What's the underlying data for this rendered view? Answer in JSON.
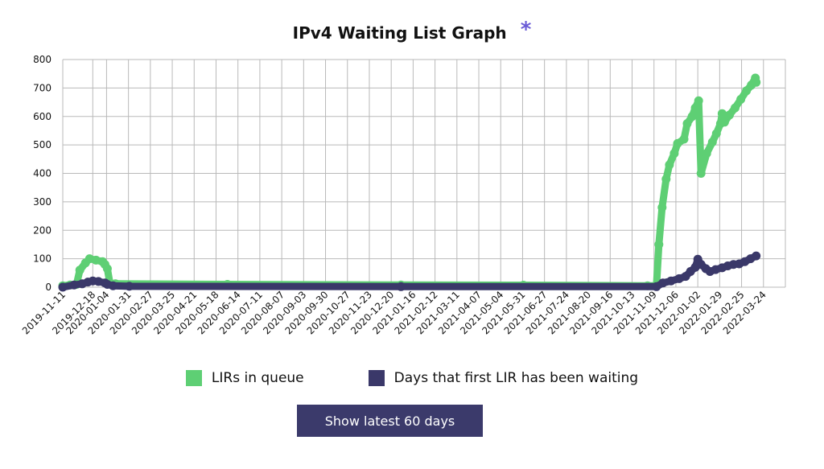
{
  "colors": {
    "lirs": "#5ecf74",
    "days": "#3a3869",
    "grid": "#b9b9b9",
    "accent": "#6a5bd6",
    "button": "#3b3a6b"
  },
  "chart_data": {
    "type": "line",
    "title": "IPv4 Waiting List Graph",
    "title_mark": "*",
    "xlabel": "",
    "ylabel": "",
    "ylim": [
      0,
      800
    ],
    "yticks": [
      "0",
      "100",
      "200",
      "300",
      "400",
      "500",
      "600",
      "700",
      "800"
    ],
    "xticks": [
      "2019-11-11",
      "2019-12-18",
      "2020-01-04",
      "2020-01-31",
      "2020-02-27",
      "2020-03-25",
      "2020-04-21",
      "2020-05-18",
      "2020-06-14",
      "2020-07-11",
      "2020-08-07",
      "2020-09-03",
      "2020-09-30",
      "2020-10-27",
      "2020-11-23",
      "2020-12-20",
      "2021-01-16",
      "2021-02-12",
      "2021-03-11",
      "2021-04-07",
      "2021-05-04",
      "2021-05-31",
      "2021-06-27",
      "2021-07-24",
      "2021-08-20",
      "2021-09-16",
      "2021-10-13",
      "2021-11-09",
      "2021-12-06",
      "2022-01-02",
      "2022-01-29",
      "2022-02-25",
      "2022-03-24"
    ],
    "grid": true,
    "legend_position": "bottom",
    "series": [
      {
        "name": "LIRs in queue",
        "points": [
          [
            "2019-11-11",
            5
          ],
          [
            "2019-11-20",
            8
          ],
          [
            "2019-11-28",
            10
          ],
          [
            "2019-12-02",
            60
          ],
          [
            "2019-12-09",
            85
          ],
          [
            "2019-12-14",
            100
          ],
          [
            "2019-12-22",
            95
          ],
          [
            "2019-12-30",
            90
          ],
          [
            "2020-01-02",
            80
          ],
          [
            "2020-01-05",
            65
          ],
          [
            "2020-01-08",
            15
          ],
          [
            "2020-01-15",
            12
          ],
          [
            "2020-06-01",
            10
          ],
          [
            "2021-01-01",
            8
          ],
          [
            "2021-06-01",
            7
          ],
          [
            "2021-11-01",
            5
          ],
          [
            "2021-11-12",
            5
          ],
          [
            "2021-11-15",
            150
          ],
          [
            "2021-11-19",
            280
          ],
          [
            "2021-11-24",
            380
          ],
          [
            "2021-11-28",
            430
          ],
          [
            "2021-12-04",
            470
          ],
          [
            "2021-12-08",
            505
          ],
          [
            "2021-12-16",
            520
          ],
          [
            "2021-12-20",
            575
          ],
          [
            "2021-12-26",
            600
          ],
          [
            "2021-12-30",
            630
          ],
          [
            "2022-01-03",
            655
          ],
          [
            "2022-01-06",
            400
          ],
          [
            "2022-01-13",
            470
          ],
          [
            "2022-01-20",
            510
          ],
          [
            "2022-01-25",
            540
          ],
          [
            "2022-01-30",
            575
          ],
          [
            "2022-02-01",
            610
          ],
          [
            "2022-02-04",
            580
          ],
          [
            "2022-02-10",
            605
          ],
          [
            "2022-02-17",
            630
          ],
          [
            "2022-02-24",
            660
          ],
          [
            "2022-03-03",
            690
          ],
          [
            "2022-03-09",
            710
          ],
          [
            "2022-03-14",
            735
          ],
          [
            "2022-03-15",
            720
          ]
        ]
      },
      {
        "name": "Days that first LIR has been waiting",
        "points": [
          [
            "2019-11-11",
            0
          ],
          [
            "2019-11-25",
            8
          ],
          [
            "2019-12-05",
            12
          ],
          [
            "2019-12-12",
            18
          ],
          [
            "2019-12-18",
            22
          ],
          [
            "2019-12-25",
            20
          ],
          [
            "2020-01-02",
            15
          ],
          [
            "2020-01-05",
            10
          ],
          [
            "2020-01-12",
            5
          ],
          [
            "2020-02-01",
            3
          ],
          [
            "2021-01-01",
            2
          ],
          [
            "2021-11-12",
            2
          ],
          [
            "2021-11-20",
            15
          ],
          [
            "2021-11-30",
            22
          ],
          [
            "2021-12-10",
            30
          ],
          [
            "2021-12-18",
            38
          ],
          [
            "2021-12-24",
            55
          ],
          [
            "2021-12-30",
            70
          ],
          [
            "2022-01-02",
            98
          ],
          [
            "2022-01-06",
            80
          ],
          [
            "2022-01-12",
            65
          ],
          [
            "2022-01-17",
            55
          ],
          [
            "2022-01-24",
            62
          ],
          [
            "2022-02-01",
            68
          ],
          [
            "2022-02-08",
            75
          ],
          [
            "2022-02-15",
            80
          ],
          [
            "2022-02-22",
            82
          ],
          [
            "2022-03-01",
            90
          ],
          [
            "2022-03-08",
            100
          ],
          [
            "2022-03-15",
            110
          ]
        ]
      }
    ]
  },
  "button": {
    "label": "Show latest 60 days"
  }
}
